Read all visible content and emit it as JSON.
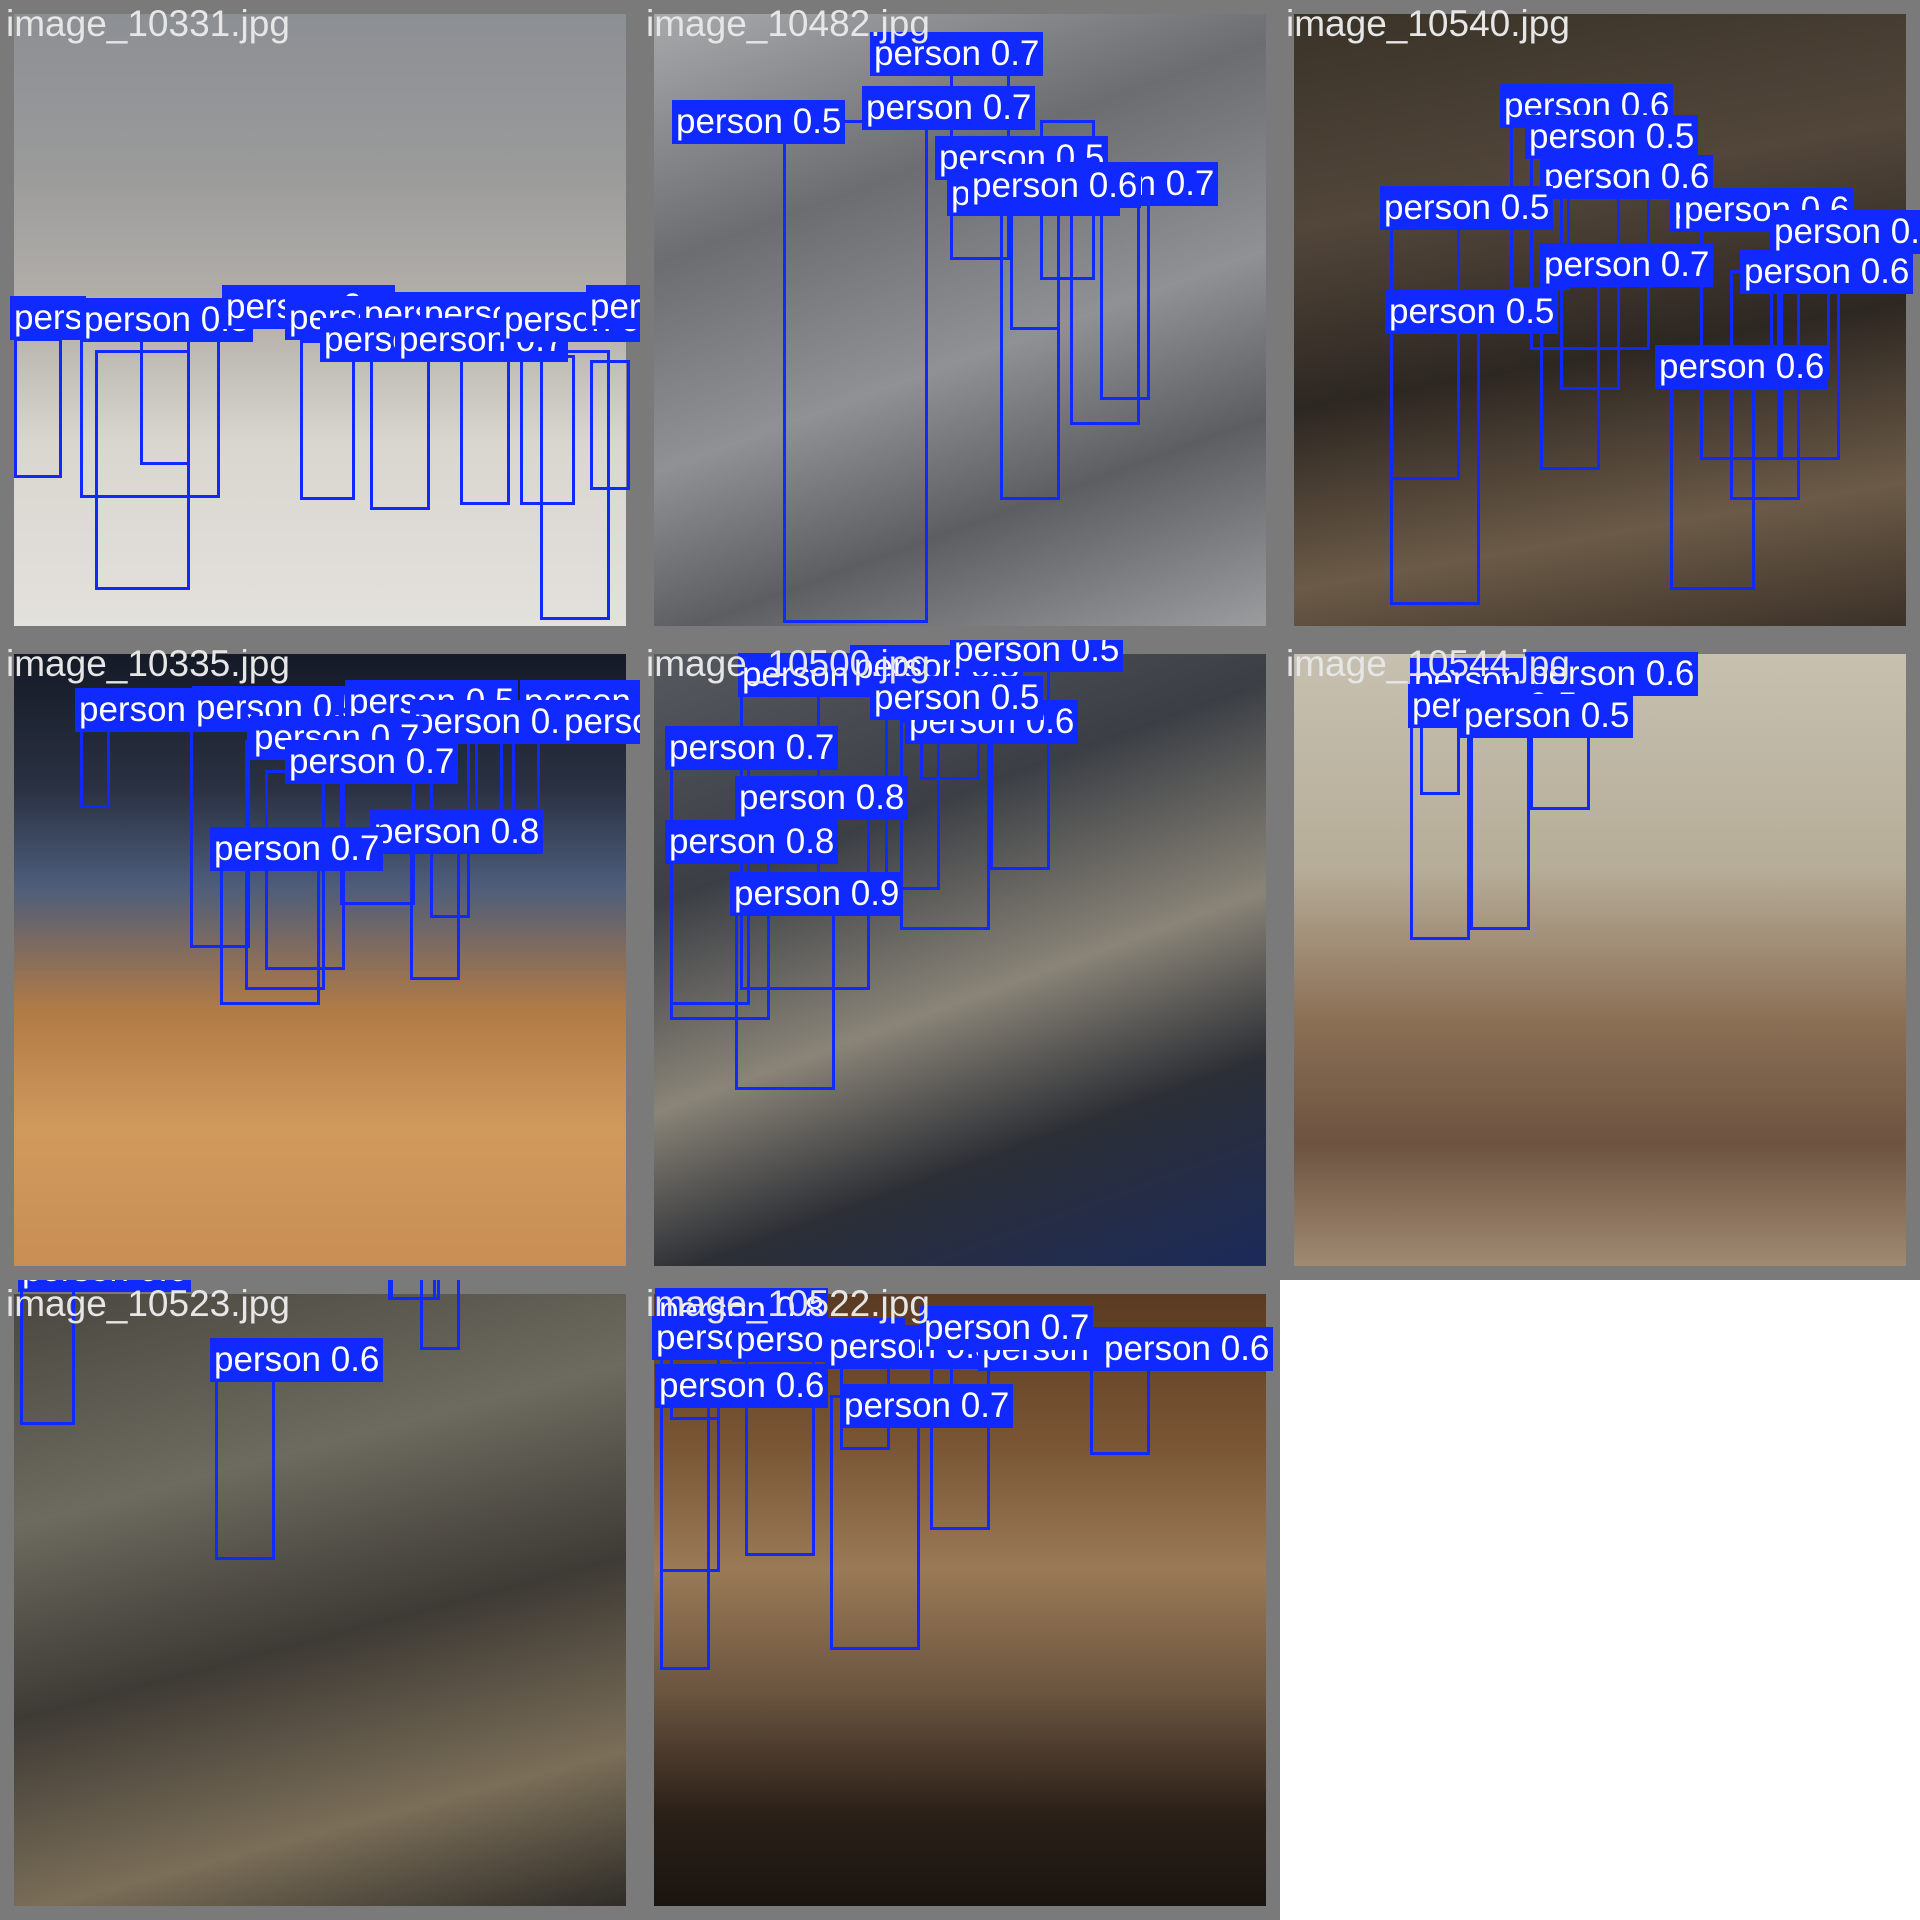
{
  "colors": {
    "tile_border": "#7a7a7a",
    "box": "#1029ff",
    "label_text": "#ffffff",
    "title_text": "#e6e6e6"
  },
  "tiles": [
    {
      "title": "image_10331.jpg",
      "scene": "street",
      "detections": [
        {
          "label": "pers",
          "score": ""
        },
        {
          "label": "person",
          "score": "0.5"
        },
        {
          "label": "person",
          "score": "0.6"
        },
        {
          "label": "person",
          "score": "0.5"
        },
        {
          "label": "person",
          "score": "0.6"
        },
        {
          "label": "person",
          "score": "0.7"
        },
        {
          "label": "person",
          "score": "0.5"
        },
        {
          "label": "person",
          "score": "0.7"
        },
        {
          "label": "person",
          "score": "0.7"
        },
        {
          "label": "person",
          "score": "0.6"
        }
      ]
    },
    {
      "title": "image_10482.jpg",
      "scene": "escalator",
      "detections": [
        {
          "label": "person",
          "score": "0.7"
        },
        {
          "label": "person",
          "score": "0.7"
        },
        {
          "label": "person",
          "score": "0.5"
        },
        {
          "label": "person",
          "score": "0.5"
        },
        {
          "label": "person",
          "score": "0.7"
        },
        {
          "label": "person",
          "score": "0.7"
        },
        {
          "label": "person",
          "score": "0.6"
        }
      ]
    },
    {
      "title": "image_10540.jpg",
      "scene": "subway-car",
      "detections": [
        {
          "label": "person",
          "score": "0.6"
        },
        {
          "label": "person",
          "score": "0.5"
        },
        {
          "label": "person",
          "score": "0.6"
        },
        {
          "label": "person",
          "score": "0.5"
        },
        {
          "label": "person",
          "score": "0.5"
        },
        {
          "label": "person",
          "score": "0.5"
        },
        {
          "label": "person",
          "score": "0.7"
        },
        {
          "label": "person",
          "score": "0.6"
        },
        {
          "label": "person",
          "score": "0.6"
        },
        {
          "label": "person",
          "score": "0.6"
        },
        {
          "label": "person",
          "score": "0.5"
        }
      ]
    },
    {
      "title": "image_10335.jpg",
      "scene": "gym",
      "detections": [
        {
          "label": "person",
          "score": "0.5"
        },
        {
          "label": "person",
          "score": "0.5"
        },
        {
          "label": "person",
          "score": "0.5"
        },
        {
          "label": "person",
          "score": "0.6"
        },
        {
          "label": "person",
          "score": "0.7"
        },
        {
          "label": "person",
          "score": "0.7"
        },
        {
          "label": "person",
          "score": "0.6"
        },
        {
          "label": "person",
          "score": "0.7"
        },
        {
          "label": "person",
          "score": "0.8"
        },
        {
          "label": "person",
          "score": "0.7"
        }
      ]
    },
    {
      "title": "image_10500.jpg",
      "scene": "station",
      "detections": [
        {
          "label": "person",
          "score": "0.6"
        },
        {
          "label": "person",
          "score": "0.5"
        },
        {
          "label": "person",
          "score": "0.5"
        },
        {
          "label": "person",
          "score": "0.6"
        },
        {
          "label": "person",
          "score": "0.5"
        },
        {
          "label": "person",
          "score": "0.7"
        },
        {
          "label": "person",
          "score": "0.8"
        },
        {
          "label": "person",
          "score": "0.8"
        },
        {
          "label": "person",
          "score": "0.9"
        }
      ]
    },
    {
      "title": "image_10544.jpg",
      "scene": "train",
      "detections": [
        {
          "label": "person",
          "score": "0.6"
        },
        {
          "label": "person",
          "score": "0.6"
        },
        {
          "label": "person",
          "score": "0.5"
        },
        {
          "label": "person",
          "score": "0.5"
        }
      ]
    },
    {
      "title": "image_10523.jpg",
      "scene": "crowd",
      "detections": [
        {
          "label": "person",
          "score": "0.5"
        },
        {
          "label": "person",
          "score": "0.5"
        },
        {
          "label": "person",
          "score": "0.5"
        },
        {
          "label": "person",
          "score": "0.5"
        },
        {
          "label": "person",
          "score": "0.6"
        },
        {
          "label": "person",
          "score": "0.6"
        },
        {
          "label": "person",
          "score": "0.6"
        },
        {
          "label": "person",
          "score": "0.5"
        },
        {
          "label": "person",
          "score": "0.6"
        },
        {
          "label": "person",
          "score": "0.6"
        }
      ]
    },
    {
      "title": "image_10522.jpg",
      "scene": "hall",
      "detections": [
        {
          "label": "person",
          "score": "0.8"
        },
        {
          "label": "person",
          "score": "0.5"
        },
        {
          "label": "person",
          "score": "0.5"
        },
        {
          "label": "person",
          "score": "0.6"
        },
        {
          "label": "person",
          "score": "0.5"
        },
        {
          "label": "person",
          "score": "0.6"
        },
        {
          "label": "person",
          "score": "0.6"
        },
        {
          "label": "person",
          "score": "0.7"
        },
        {
          "label": "person",
          "score": "0.7"
        }
      ]
    }
  ]
}
